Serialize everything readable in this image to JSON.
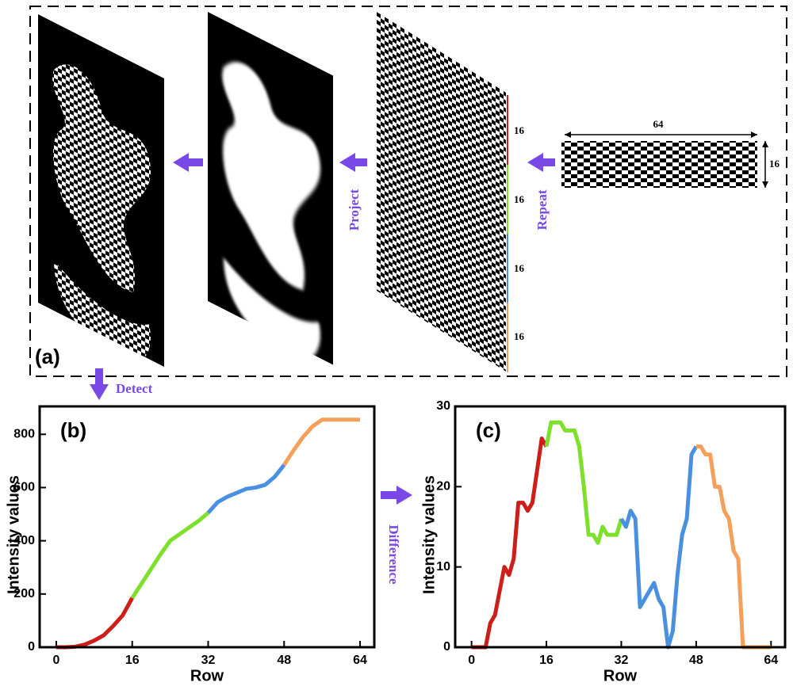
{
  "diagram": {
    "panel_label": "(a)",
    "arrows": [
      "Repeat",
      "Project",
      "Detect",
      "Difference"
    ],
    "dimensions": {
      "width": "64",
      "height": "16"
    },
    "segments": [
      "16",
      "16",
      "16",
      "16"
    ]
  },
  "chart_data": [
    {
      "type": "line",
      "panel_label": "(b)",
      "x_label": "Row",
      "y_label": "Intensity  values",
      "xlim": [
        -3.5,
        67
      ],
      "ylim": [
        0,
        905
      ],
      "xticks": [
        0,
        16,
        32,
        48,
        64
      ],
      "yticks": [
        0,
        200,
        400,
        600,
        800
      ],
      "series": [
        {
          "color": "#cc1f1a",
          "x": [
            0,
            2,
            4,
            6,
            8,
            10,
            12,
            14,
            16
          ],
          "values": [
            0,
            0,
            2,
            10,
            25,
            45,
            80,
            120,
            185
          ]
        },
        {
          "color": "#7de02a",
          "x": [
            16,
            18,
            20,
            22,
            24,
            26,
            28,
            30,
            32
          ],
          "values": [
            185,
            240,
            295,
            350,
            400,
            425,
            450,
            475,
            505
          ]
        },
        {
          "color": "#4a90e0",
          "x": [
            32,
            34,
            36,
            38,
            40,
            42,
            44,
            46,
            48
          ],
          "values": [
            505,
            545,
            565,
            580,
            595,
            600,
            610,
            640,
            685
          ]
        },
        {
          "color": "#f5a05a",
          "x": [
            48,
            50,
            52,
            54,
            56,
            58,
            60,
            62,
            64
          ],
          "values": [
            685,
            740,
            790,
            830,
            855,
            855,
            855,
            855,
            855
          ]
        }
      ]
    },
    {
      "type": "line",
      "panel_label": "(c)",
      "x_label": "Row",
      "y_label": "Intensity  values",
      "xlim": [
        -3.5,
        67
      ],
      "ylim": [
        0,
        30
      ],
      "xticks": [
        0,
        16,
        32,
        48,
        64
      ],
      "yticks": [
        0,
        10,
        20,
        30
      ],
      "series": [
        {
          "color": "#cc1f1a",
          "x": [
            0,
            1,
            2,
            3,
            4,
            5,
            6,
            7,
            8,
            9,
            10,
            11,
            12,
            13,
            14,
            15,
            16
          ],
          "values": [
            0,
            0,
            0,
            0,
            3,
            4,
            7,
            10,
            9,
            11,
            18,
            18,
            17,
            18,
            22,
            26,
            25
          ]
        },
        {
          "color": "#7de02a",
          "x": [
            16,
            17,
            18,
            19,
            20,
            21,
            22,
            23,
            24,
            25,
            26,
            27,
            28,
            29,
            30,
            31,
            32
          ],
          "values": [
            25,
            28,
            28,
            28,
            27,
            27,
            27,
            25,
            20,
            14,
            14,
            13,
            15,
            14,
            14,
            14,
            16
          ]
        },
        {
          "color": "#4a90e0",
          "x": [
            32,
            33,
            34,
            35,
            36,
            37,
            38,
            39,
            40,
            41,
            42,
            43,
            44,
            45,
            46,
            47,
            48
          ],
          "values": [
            16,
            15,
            17,
            16,
            5,
            6,
            7,
            8,
            6,
            5,
            0,
            2,
            9,
            14,
            16,
            24,
            25
          ]
        },
        {
          "color": "#f5a05a",
          "x": [
            48,
            49,
            50,
            51,
            52,
            53,
            54,
            55,
            56,
            57,
            58,
            59,
            60,
            61,
            62,
            63,
            64
          ],
          "values": [
            25,
            25,
            24,
            24,
            20,
            20,
            17,
            16,
            12,
            11,
            0,
            0,
            0,
            0,
            0,
            0,
            0
          ]
        }
      ]
    }
  ]
}
